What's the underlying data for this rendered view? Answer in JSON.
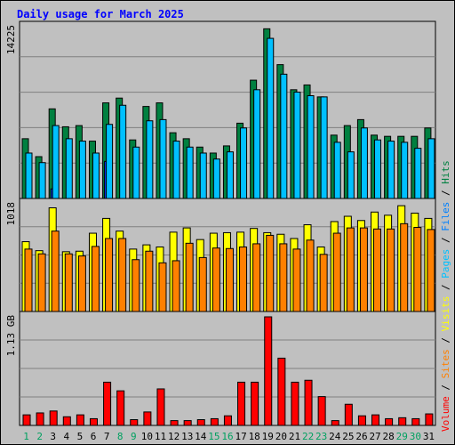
{
  "colors": {
    "background": "#c0c0c0",
    "plot_background": "#c0c0c0",
    "title_color": "#0000ff",
    "hits": "#008040",
    "files": "#00c0ff",
    "pages": "#00c0ff",
    "visits": "#ffff00",
    "sites": "#ff8000",
    "volume": "#ff0000",
    "weekend_day": "#00a060",
    "weekday_day": "#000000"
  },
  "chart_data": {
    "type": "bar",
    "title": "Daily usage for March 2025",
    "days": [
      "1",
      "2",
      "3",
      "4",
      "5",
      "6",
      "7",
      "8",
      "9",
      "10",
      "11",
      "12",
      "13",
      "14",
      "15",
      "16",
      "17",
      "18",
      "19",
      "20",
      "21",
      "22",
      "23",
      "24",
      "25",
      "26",
      "27",
      "28",
      "29",
      "30",
      "31"
    ],
    "weekend_days": [
      "1",
      "2",
      "8",
      "9",
      "15",
      "16",
      "22",
      "23",
      "29",
      "30"
    ],
    "panels": [
      {
        "name": "hits-files",
        "ymax_label": "14225",
        "ymax": 14225,
        "series": [
          {
            "name": "Hits",
            "values": [
              5000,
              3500,
              7500,
              6000,
              6100,
              4800,
              8000,
              8400,
              4900,
              7700,
              8000,
              5500,
              5000,
              4300,
              3800,
              4400,
              6300,
              9900,
              14200,
              11200,
              9100,
              9500,
              8500,
              5300,
              6100,
              6600,
              5300,
              5200,
              5200,
              5200,
              5900
            ]
          },
          {
            "name": "Files",
            "values": [
              3800,
              3000,
              6100,
              5000,
              4800,
              3800,
              6200,
              7800,
              4300,
              6500,
              6600,
              4800,
              4300,
              3800,
              3300,
              3900,
              5900,
              9100,
              13400,
              10400,
              8900,
              8600,
              8500,
              4700,
              3900,
              5900,
              4900,
              4800,
              4700,
              4200,
              5000
            ]
          },
          {
            "name": "Pages",
            "values": [
              0,
              0,
              800,
              0,
              0,
              0,
              3100,
              0,
              0,
              0,
              0,
              0,
              0,
              0,
              0,
              0,
              0,
              0,
              0,
              0,
              0,
              0,
              0,
              0,
              0,
              0,
              0,
              0,
              0,
              0,
              0
            ]
          }
        ]
      },
      {
        "name": "visits-sites",
        "ymax_label": "1018",
        "ymax": 1018,
        "series": [
          {
            "name": "Visits",
            "values": [
              660,
              575,
              980,
              565,
              570,
              740,
              880,
              760,
              590,
              630,
              610,
              750,
              790,
              680,
              740,
              745,
              750,
              785,
              745,
              730,
              690,
              820,
              610,
              850,
              900,
              860,
              940,
              910,
              1000,
              930,
              880
            ]
          },
          {
            "name": "Sites",
            "values": [
              590,
              545,
              760,
              545,
              525,
              615,
              690,
              690,
              490,
              570,
              460,
              480,
              645,
              510,
              600,
              595,
              610,
              640,
              720,
              640,
              590,
              675,
              540,
              740,
              790,
              790,
              780,
              780,
              830,
              795,
              775
            ]
          }
        ]
      },
      {
        "name": "volume",
        "ymax_label": "1.13 GB",
        "ymax": 1.13,
        "series": [
          {
            "name": "Volume",
            "values": [
              0.11,
              0.13,
              0.15,
              0.09,
              0.11,
              0.07,
              0.45,
              0.36,
              0.06,
              0.14,
              0.38,
              0.05,
              0.05,
              0.06,
              0.07,
              0.1,
              0.45,
              0.45,
              1.13,
              0.7,
              0.45,
              0.47,
              0.3,
              0.05,
              0.22,
              0.1,
              0.11,
              0.07,
              0.08,
              0.07,
              0.12
            ]
          }
        ]
      }
    ],
    "legend": [
      {
        "label": "Volume",
        "color": "#ff0000"
      },
      {
        "label": "Sites",
        "color": "#ff8000"
      },
      {
        "label": "Visits",
        "color": "#ffff00"
      },
      {
        "label": "Pages",
        "color": "#00c0ff"
      },
      {
        "label": "Files",
        "color": "#0080ff"
      },
      {
        "label": "Hits",
        "color": "#008040"
      }
    ],
    "legend_separator": "/"
  }
}
